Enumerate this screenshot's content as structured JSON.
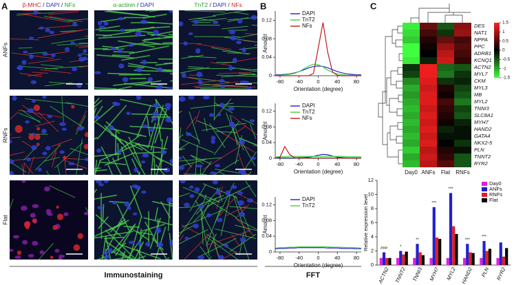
{
  "panels": [
    "A",
    "B",
    "C"
  ],
  "panel_a": {
    "columns": [
      [
        {
          "text": "β-MHC",
          "color": "#d42020"
        },
        {
          "text": " / ",
          "color": "#222222"
        },
        {
          "text": "DAPI",
          "color": "#2030c0"
        },
        {
          "text": " / ",
          "color": "#222222"
        },
        {
          "text": "NFs",
          "color": "#20a020"
        }
      ],
      [
        {
          "text": "α-actinin",
          "color": "#20a020"
        },
        {
          "text": " / ",
          "color": "#222222"
        },
        {
          "text": "DAPI",
          "color": "#2030c0"
        }
      ],
      [
        {
          "text": "TnT2",
          "color": "#20a020"
        },
        {
          "text": " / ",
          "color": "#222222"
        },
        {
          "text": "DAPI",
          "color": "#2030c0"
        },
        {
          "text": " / ",
          "color": "#222222"
        },
        {
          "text": "NFs",
          "color": "#d42020"
        }
      ]
    ],
    "rows": [
      "ANFs",
      "RNFs",
      "Flat"
    ],
    "caption": "Immunostaining"
  },
  "panel_b_caption": "FFT",
  "chart_data": [
    {
      "type": "line",
      "xlabel": "Orientation (degree)",
      "ylabel": "Amount",
      "x": [
        -90,
        -80,
        -70,
        -60,
        -50,
        -40,
        -30,
        -20,
        -10,
        0,
        10,
        20,
        30,
        40,
        50,
        60,
        70,
        80,
        90
      ],
      "xlim": [
        -90,
        90
      ],
      "xticks": [
        -80,
        -40,
        0,
        40,
        80
      ],
      "ylim": [
        0,
        0.14
      ],
      "yticks": [
        0,
        0.04,
        0.08,
        0.12
      ],
      "series": [
        {
          "name": "DAPI",
          "color": "#2020d0",
          "values": [
            0.002,
            0.002,
            0.003,
            0.004,
            0.006,
            0.009,
            0.013,
            0.017,
            0.02,
            0.021,
            0.02,
            0.017,
            0.013,
            0.009,
            0.006,
            0.004,
            0.003,
            0.002,
            0.002
          ]
        },
        {
          "name": "TnT2",
          "color": "#40d040",
          "values": [
            0.001,
            0.001,
            0.002,
            0.003,
            0.005,
            0.009,
            0.015,
            0.021,
            0.025,
            0.024,
            0.019,
            0.012,
            0.007,
            0.004,
            0.002,
            0.001,
            0.001,
            0.001,
            0.001
          ]
        },
        {
          "name": "NFs",
          "color": "#c01818",
          "values": [
            0,
            0,
            0,
            0,
            0,
            0,
            0,
            0,
            0.005,
            0.06,
            0.115,
            0.05,
            0.008,
            0.001,
            0,
            0,
            0,
            0,
            0
          ]
        }
      ]
    },
    {
      "type": "line",
      "xlabel": "Orientation (degree)",
      "ylabel": "Amount",
      "x": [
        -90,
        -80,
        -70,
        -60,
        -50,
        -40,
        -30,
        -20,
        -10,
        0,
        10,
        20,
        30,
        40,
        50,
        60,
        70,
        80,
        90
      ],
      "xlim": [
        -90,
        90
      ],
      "xticks": [
        -80,
        -40,
        0,
        40,
        80
      ],
      "ylim": [
        0,
        0.14
      ],
      "yticks": [
        0,
        0.04,
        0.08,
        0.12
      ],
      "series": [
        {
          "name": "DAPI",
          "color": "#2020d0",
          "values": [
            0.001,
            0.001,
            0.001,
            0.001,
            0.001,
            0.002,
            0.002,
            0.003,
            0.005,
            0.008,
            0.01,
            0.009,
            0.006,
            0.003,
            0.002,
            0.001,
            0.001,
            0.001,
            0.001
          ]
        },
        {
          "name": "TnT2",
          "color": "#40d040",
          "values": [
            0.004,
            0.004,
            0.004,
            0.005,
            0.005,
            0.005,
            0.005,
            0.005,
            0.005,
            0.005,
            0.005,
            0.005,
            0.005,
            0.005,
            0.005,
            0.004,
            0.004,
            0.004,
            0.004
          ]
        },
        {
          "name": "NFs",
          "color": "#c01818",
          "values": [
            0.001,
            0.003,
            0.03,
            0.01,
            0.002,
            0.001,
            0.001,
            0.001,
            0.001,
            0.001,
            0.001,
            0.001,
            0.001,
            0.001,
            0.001,
            0.001,
            0.001,
            0.001,
            0.001
          ]
        }
      ]
    },
    {
      "type": "line",
      "xlabel": "Orientation (degree)",
      "ylabel": "Amount",
      "x": [
        -90,
        -80,
        -70,
        -60,
        -50,
        -40,
        -30,
        -20,
        -10,
        0,
        10,
        20,
        30,
        40,
        50,
        60,
        70,
        80,
        90
      ],
      "xlim": [
        -90,
        90
      ],
      "xticks": [
        -80,
        -40,
        0,
        40,
        80
      ],
      "ylim": [
        0,
        0.14
      ],
      "yticks": [
        0,
        0.04,
        0.08,
        0.12
      ],
      "series": [
        {
          "name": "DAPI",
          "color": "#2020d0",
          "values": [
            0.008,
            0.009,
            0.009,
            0.01,
            0.01,
            0.011,
            0.011,
            0.011,
            0.011,
            0.011,
            0.011,
            0.01,
            0.01,
            0.01,
            0.009,
            0.009,
            0.009,
            0.008,
            0.008
          ]
        },
        {
          "name": "TnT2",
          "color": "#40d040",
          "values": [
            0.01,
            0.011,
            0.011,
            0.012,
            0.012,
            0.013,
            0.013,
            0.013,
            0.013,
            0.013,
            0.013,
            0.013,
            0.012,
            0.012,
            0.012,
            0.011,
            0.011,
            0.011,
            0.01
          ]
        }
      ]
    },
    {
      "type": "heatmap",
      "rows": [
        "DES",
        "NAT1",
        "NPPA",
        "PPC",
        "ADRB1",
        "KCNQ1",
        "ACTN2",
        "MYL7",
        "CKM",
        "MYL3",
        "MB",
        "MYL2",
        "TNNI3",
        "SLC8A1",
        "MYH7",
        "HAND2",
        "GATA4",
        "NKX2-5",
        "PLN",
        "TNNT2",
        "RYR2"
      ],
      "columns": [
        "Day0",
        "ANFs",
        "Flat",
        "RNFs"
      ],
      "values": [
        [
          -1.4,
          0.6,
          -0.5,
          0.8
        ],
        [
          -1.3,
          0.4,
          -0.3,
          0.9
        ],
        [
          -1.2,
          0.2,
          0.6,
          0.4
        ],
        [
          -1.5,
          0.1,
          0.9,
          0.5
        ],
        [
          -1.5,
          0,
          1.1,
          0.4
        ],
        [
          -1.4,
          -0.2,
          1.2,
          0.3
        ],
        [
          -0.3,
          1.4,
          -0.6,
          -0.5
        ],
        [
          -0.4,
          1.4,
          -0.7,
          -0.3
        ],
        [
          -0.8,
          1.3,
          -0.3,
          -0.2
        ],
        [
          -1,
          1.2,
          0.2,
          -0.4
        ],
        [
          -0.9,
          1.3,
          0.1,
          -0.5
        ],
        [
          -1,
          1.3,
          0.4,
          -0.7
        ],
        [
          -1.1,
          1.2,
          0.3,
          -0.4
        ],
        [
          -1,
          1.3,
          0.2,
          -0.5
        ],
        [
          -1.1,
          1.2,
          0.1,
          -0.2
        ],
        [
          -1,
          1.3,
          -0.2,
          -0.1
        ],
        [
          -1.1,
          1.2,
          -0.1,
          -0.1
        ],
        [
          -1,
          1.3,
          0,
          -0.3
        ],
        [
          -1.2,
          1.1,
          0.2,
          -0.1
        ],
        [
          -1,
          1.2,
          0.3,
          -0.5
        ],
        [
          -1.1,
          1.1,
          0.5,
          -0.5
        ]
      ],
      "clim": [
        -1.5,
        1.5
      ],
      "cticks": [
        1.5,
        1,
        0.5,
        0,
        -0.5,
        -1,
        -1.5
      ],
      "low_color": "#40ff40",
      "mid_color": "#000000",
      "high_color": "#ff2020"
    },
    {
      "type": "bar",
      "ylabel": "Relative expression level",
      "categories": [
        "ACTN2",
        "TNNT2",
        "TNNI3",
        "MYH7",
        "MYL2",
        "HAND2",
        "PLN",
        "RYR2"
      ],
      "ylim": [
        0,
        12
      ],
      "yticks": [
        0,
        2,
        4,
        6,
        8,
        10,
        12
      ],
      "series": [
        {
          "name": "Day0",
          "color": "#e020e0",
          "values": [
            1,
            1,
            1,
            1,
            1,
            1,
            1,
            1
          ]
        },
        {
          "name": "ANFs",
          "color": "#2020d0",
          "values": [
            1.8,
            2,
            3,
            8.2,
            10.2,
            3,
            3.4,
            3.2
          ]
        },
        {
          "name": "RNFs",
          "color": "#e02020",
          "values": [
            1,
            1.5,
            1.8,
            3.9,
            5.5,
            1.8,
            2,
            1.2
          ]
        },
        {
          "name": "Flat",
          "color": "#000000",
          "values": [
            1,
            1.9,
            1.4,
            3.7,
            4.4,
            1.7,
            2.3,
            2.4
          ]
        }
      ],
      "annotations": [
        "###",
        "*",
        "**",
        "***",
        "***",
        "***",
        "***",
        null
      ]
    }
  ]
}
